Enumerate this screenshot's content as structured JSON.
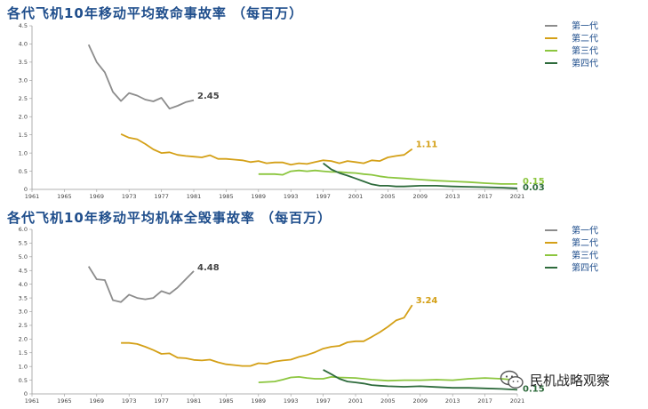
{
  "chart_data": [
    {
      "type": "line",
      "title": "各代飞机10年移动平均致命事故率 （每百万）",
      "xlim": [
        1961,
        2021
      ],
      "ylim": [
        0,
        4.5
      ],
      "yticks": [
        "0",
        "0.5",
        "1.0",
        "1.5",
        "2.0",
        "2.5",
        "3.0",
        "3.5",
        "4.0",
        "4.5"
      ],
      "xticks": [
        "1961",
        "1965",
        "1969",
        "1973",
        "1977",
        "1981",
        "1985",
        "1989",
        "1993",
        "1997",
        "2001",
        "2005",
        "2009",
        "2013",
        "2017",
        "2021"
      ],
      "legend_position": "right",
      "grid": false,
      "series": [
        {
          "name": "第一代",
          "color": "#8c8c8c",
          "end_label": "2.45",
          "x": [
            1968,
            1969,
            1970,
            1971,
            1972,
            1973,
            1974,
            1975,
            1976,
            1977,
            1978,
            1979,
            1980,
            1981
          ],
          "y": [
            3.98,
            3.5,
            3.22,
            2.68,
            2.43,
            2.65,
            2.58,
            2.47,
            2.42,
            2.52,
            2.22,
            2.3,
            2.4,
            2.45
          ]
        },
        {
          "name": "第二代",
          "color": "#d4a017",
          "end_label": "1.11",
          "x": [
            1972,
            1973,
            1974,
            1975,
            1976,
            1977,
            1978,
            1979,
            1980,
            1981,
            1982,
            1983,
            1984,
            1985,
            1986,
            1987,
            1988,
            1989,
            1990,
            1991,
            1992,
            1993,
            1994,
            1995,
            1996,
            1997,
            1998,
            1999,
            2000,
            2001,
            2002,
            2003,
            2004,
            2005,
            2006,
            2007,
            2008
          ],
          "y": [
            1.52,
            1.42,
            1.38,
            1.25,
            1.1,
            1.0,
            1.02,
            0.95,
            0.92,
            0.9,
            0.88,
            0.94,
            0.84,
            0.84,
            0.82,
            0.8,
            0.75,
            0.78,
            0.72,
            0.74,
            0.74,
            0.68,
            0.72,
            0.7,
            0.75,
            0.8,
            0.78,
            0.72,
            0.78,
            0.75,
            0.72,
            0.8,
            0.78,
            0.88,
            0.92,
            0.95,
            1.11
          ]
        },
        {
          "name": "第三代",
          "color": "#8cc63f",
          "end_label": "0.15",
          "x": [
            1989,
            1991,
            1992,
            1993,
            1994,
            1995,
            1996,
            1997,
            1998,
            1999,
            2000,
            2001,
            2002,
            2003,
            2004,
            2005,
            2007,
            2009,
            2011,
            2013,
            2015,
            2017,
            2019,
            2021
          ],
          "y": [
            0.42,
            0.42,
            0.4,
            0.5,
            0.52,
            0.5,
            0.52,
            0.5,
            0.48,
            0.48,
            0.46,
            0.45,
            0.42,
            0.4,
            0.36,
            0.33,
            0.3,
            0.27,
            0.24,
            0.22,
            0.2,
            0.17,
            0.15,
            0.15
          ]
        },
        {
          "name": "第四代",
          "color": "#2e6b3c",
          "end_label": "0.03",
          "x": [
            1997,
            1998,
            1999,
            2000,
            2001,
            2002,
            2003,
            2004,
            2005,
            2006,
            2007,
            2009,
            2011,
            2013,
            2015,
            2017,
            2019,
            2021
          ],
          "y": [
            0.72,
            0.55,
            0.45,
            0.38,
            0.3,
            0.22,
            0.14,
            0.1,
            0.1,
            0.08,
            0.08,
            0.1,
            0.1,
            0.08,
            0.07,
            0.06,
            0.05,
            0.03
          ]
        }
      ]
    },
    {
      "type": "line",
      "title": "各代飞机10年移动平均机体全毁事故率 （每百万）",
      "xlim": [
        1961,
        2021
      ],
      "ylim": [
        0,
        6.0
      ],
      "yticks": [
        "0",
        "0.5",
        "1.0",
        "1.5",
        "2.0",
        "2.5",
        "3.0",
        "3.5",
        "4.0",
        "4.5",
        "5.0",
        "5.5",
        "6.0"
      ],
      "xticks": [
        "1961",
        "1965",
        "1969",
        "1973",
        "1977",
        "1981",
        "1985",
        "1989",
        "1993",
        "1997",
        "2001",
        "2005",
        "2009",
        "2013",
        "2017",
        "2021"
      ],
      "legend_position": "right",
      "grid": false,
      "series": [
        {
          "name": "第一代",
          "color": "#8c8c8c",
          "end_label": "4.48",
          "x": [
            1968,
            1969,
            1970,
            1971,
            1972,
            1973,
            1974,
            1975,
            1976,
            1977,
            1978,
            1979,
            1980,
            1981
          ],
          "y": [
            4.65,
            4.18,
            4.15,
            3.42,
            3.35,
            3.62,
            3.5,
            3.45,
            3.5,
            3.75,
            3.65,
            3.88,
            4.18,
            4.48
          ]
        },
        {
          "name": "第二代",
          "color": "#d4a017",
          "end_label": "3.24",
          "x": [
            1972,
            1973,
            1974,
            1975,
            1976,
            1977,
            1978,
            1979,
            1980,
            1981,
            1982,
            1983,
            1984,
            1985,
            1986,
            1987,
            1988,
            1989,
            1990,
            1991,
            1992,
            1993,
            1994,
            1995,
            1996,
            1997,
            1998,
            1999,
            2000,
            2001,
            2002,
            2003,
            2004,
            2005,
            2006,
            2007,
            2008
          ],
          "y": [
            1.86,
            1.86,
            1.82,
            1.72,
            1.6,
            1.46,
            1.48,
            1.32,
            1.3,
            1.24,
            1.22,
            1.25,
            1.15,
            1.08,
            1.05,
            1.02,
            1.02,
            1.12,
            1.1,
            1.18,
            1.22,
            1.25,
            1.35,
            1.42,
            1.52,
            1.65,
            1.72,
            1.75,
            1.88,
            1.92,
            1.92,
            2.08,
            2.25,
            2.45,
            2.68,
            2.78,
            3.24
          ]
        },
        {
          "name": "第三代",
          "color": "#8cc63f",
          "end_label": "",
          "x": [
            1989,
            1991,
            1992,
            1993,
            1994,
            1995,
            1996,
            1997,
            1998,
            1999,
            2001,
            2003,
            2005,
            2007,
            2009,
            2011,
            2013,
            2015,
            2017,
            2019,
            2021
          ],
          "y": [
            0.42,
            0.45,
            0.52,
            0.6,
            0.62,
            0.58,
            0.55,
            0.55,
            0.62,
            0.6,
            0.58,
            0.52,
            0.48,
            0.5,
            0.5,
            0.52,
            0.5,
            0.55,
            0.58,
            0.55,
            0.5
          ]
        },
        {
          "name": "第四代",
          "color": "#2e6b3c",
          "end_label": "0.15",
          "x": [
            1997,
            1998,
            1999,
            2000,
            2001,
            2002,
            2003,
            2004,
            2005,
            2007,
            2009,
            2011,
            2013,
            2015,
            2017,
            2019,
            2021
          ],
          "y": [
            0.88,
            0.72,
            0.55,
            0.45,
            0.42,
            0.38,
            0.32,
            0.3,
            0.28,
            0.26,
            0.28,
            0.25,
            0.22,
            0.22,
            0.2,
            0.18,
            0.15
          ]
        }
      ]
    }
  ],
  "watermark": {
    "text": "民机战略观察",
    "icon": "wechat-icon"
  }
}
